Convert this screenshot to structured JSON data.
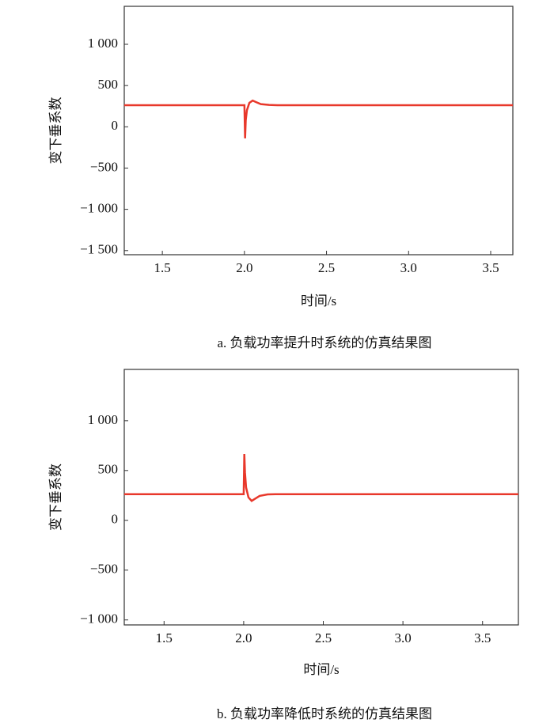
{
  "chart_data": [
    {
      "type": "line",
      "caption": "a. 负载功率提升时系统的仿真结果图",
      "xlabel": "时间/s",
      "ylabel": "变下垂系数",
      "color": "#e8382b",
      "x": [
        1.268,
        2.0,
        2.004,
        2.008,
        2.015,
        2.03,
        2.05,
        2.07,
        2.1,
        2.15,
        2.2,
        3.635
      ],
      "values": [
        262,
        262,
        -140,
        80,
        200,
        290,
        318,
        300,
        275,
        265,
        262,
        262
      ],
      "xlim": [
        1.268,
        3.635
      ],
      "ylim": [
        -1550,
        1460
      ],
      "xticks": [
        1.5,
        {
          "value": 2,
          "label": "2.0"
        },
        2.5,
        {
          "value": 3,
          "label": "3.0"
        },
        3.5
      ],
      "yticks": [
        {
          "value": -1500,
          "label": "−1 500"
        },
        {
          "value": -1000,
          "label": "−1 000"
        },
        {
          "value": -500,
          "label": "−500"
        },
        0,
        500,
        {
          "value": 1000,
          "label": "1 000"
        }
      ]
    },
    {
      "type": "line",
      "caption": "b. 负载功率降低时系统的仿真结果图",
      "xlabel": "时间/s",
      "ylabel": "变下垂系数",
      "color": "#e8382b",
      "x": [
        1.25,
        2.0,
        2.004,
        2.008,
        2.015,
        2.03,
        2.05,
        2.07,
        2.1,
        2.15,
        2.2,
        3.725
      ],
      "values": [
        262,
        262,
        665,
        480,
        330,
        230,
        195,
        215,
        245,
        260,
        262,
        262
      ],
      "xlim": [
        1.25,
        3.725
      ],
      "ylim": [
        -1050,
        1515
      ],
      "xticks": [
        1.5,
        {
          "value": 2,
          "label": "2.0"
        },
        2.5,
        {
          "value": 3,
          "label": "3.0"
        },
        3.5
      ],
      "yticks": [
        {
          "value": -1000,
          "label": "−1 000"
        },
        {
          "value": -500,
          "label": "−500"
        },
        0,
        500,
        {
          "value": 1000,
          "label": "1 000"
        }
      ]
    }
  ]
}
